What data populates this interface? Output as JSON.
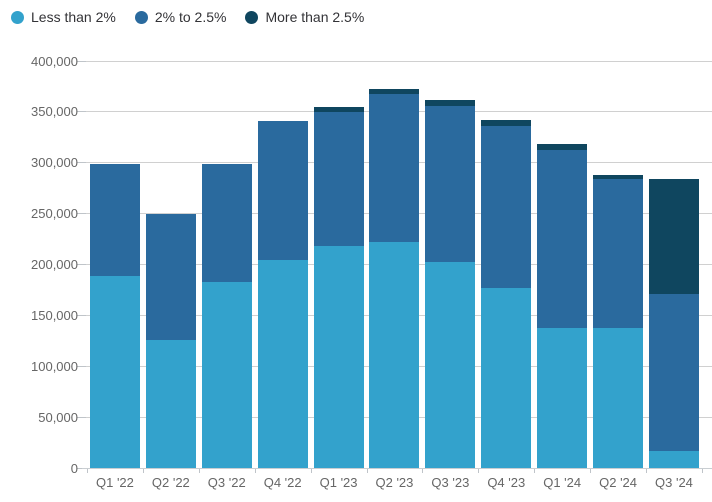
{
  "chart": {
    "legend_items": [
      {
        "label": "Less than 2%",
        "color": "#33a2cc"
      },
      {
        "label": "2% to 2.5%",
        "color": "#2a6a9e"
      },
      {
        "label": "More than 2.5%",
        "color": "#0f465f"
      }
    ]
  },
  "chart_data": {
    "type": "bar",
    "stacked": true,
    "title": "",
    "xlabel": "",
    "ylabel": "",
    "categories": [
      "Q1 '22",
      "Q2 '22",
      "Q3 '22",
      "Q4 '22",
      "Q1 '23",
      "Q2 '23",
      "Q3 '23",
      "Q4 '23",
      "Q1 '24",
      "Q2 '24",
      "Q3 '24"
    ],
    "series": [
      {
        "name": "Less than 2%",
        "color": "#33a2cc",
        "values": [
          189000,
          126000,
          183000,
          204000,
          218000,
          222000,
          202000,
          177000,
          138000,
          138000,
          17000
        ]
      },
      {
        "name": "2% to 2.5%",
        "color": "#2a6a9e",
        "values": [
          110000,
          124000,
          116000,
          137000,
          132000,
          146000,
          154000,
          159000,
          175000,
          146000,
          154000
        ]
      },
      {
        "name": "More than 2.5%",
        "color": "#0f465f",
        "values": [
          0,
          0,
          0,
          0,
          5000,
          5000,
          6000,
          6000,
          5000,
          4000,
          113000
        ]
      }
    ],
    "totals": [
      299000,
      250000,
      299000,
      341000,
      355000,
      373000,
      362000,
      342000,
      318000,
      288000,
      284000
    ],
    "ylim": [
      0,
      400000
    ],
    "ytick_step": 50000,
    "yticklabels": [
      "0",
      "50,000",
      "100,000",
      "150,000",
      "200,000",
      "250,000",
      "300,000",
      "350,000",
      "400,000"
    ],
    "grid": true,
    "legend_position": "top-left"
  },
  "colors": {
    "background": "#ffffff",
    "gridline": "#d0d0d0",
    "axis_line": "#c9ced2",
    "tick": "#bfc4c9",
    "axis_label_text": "#666666",
    "legend_text": "#333337"
  }
}
